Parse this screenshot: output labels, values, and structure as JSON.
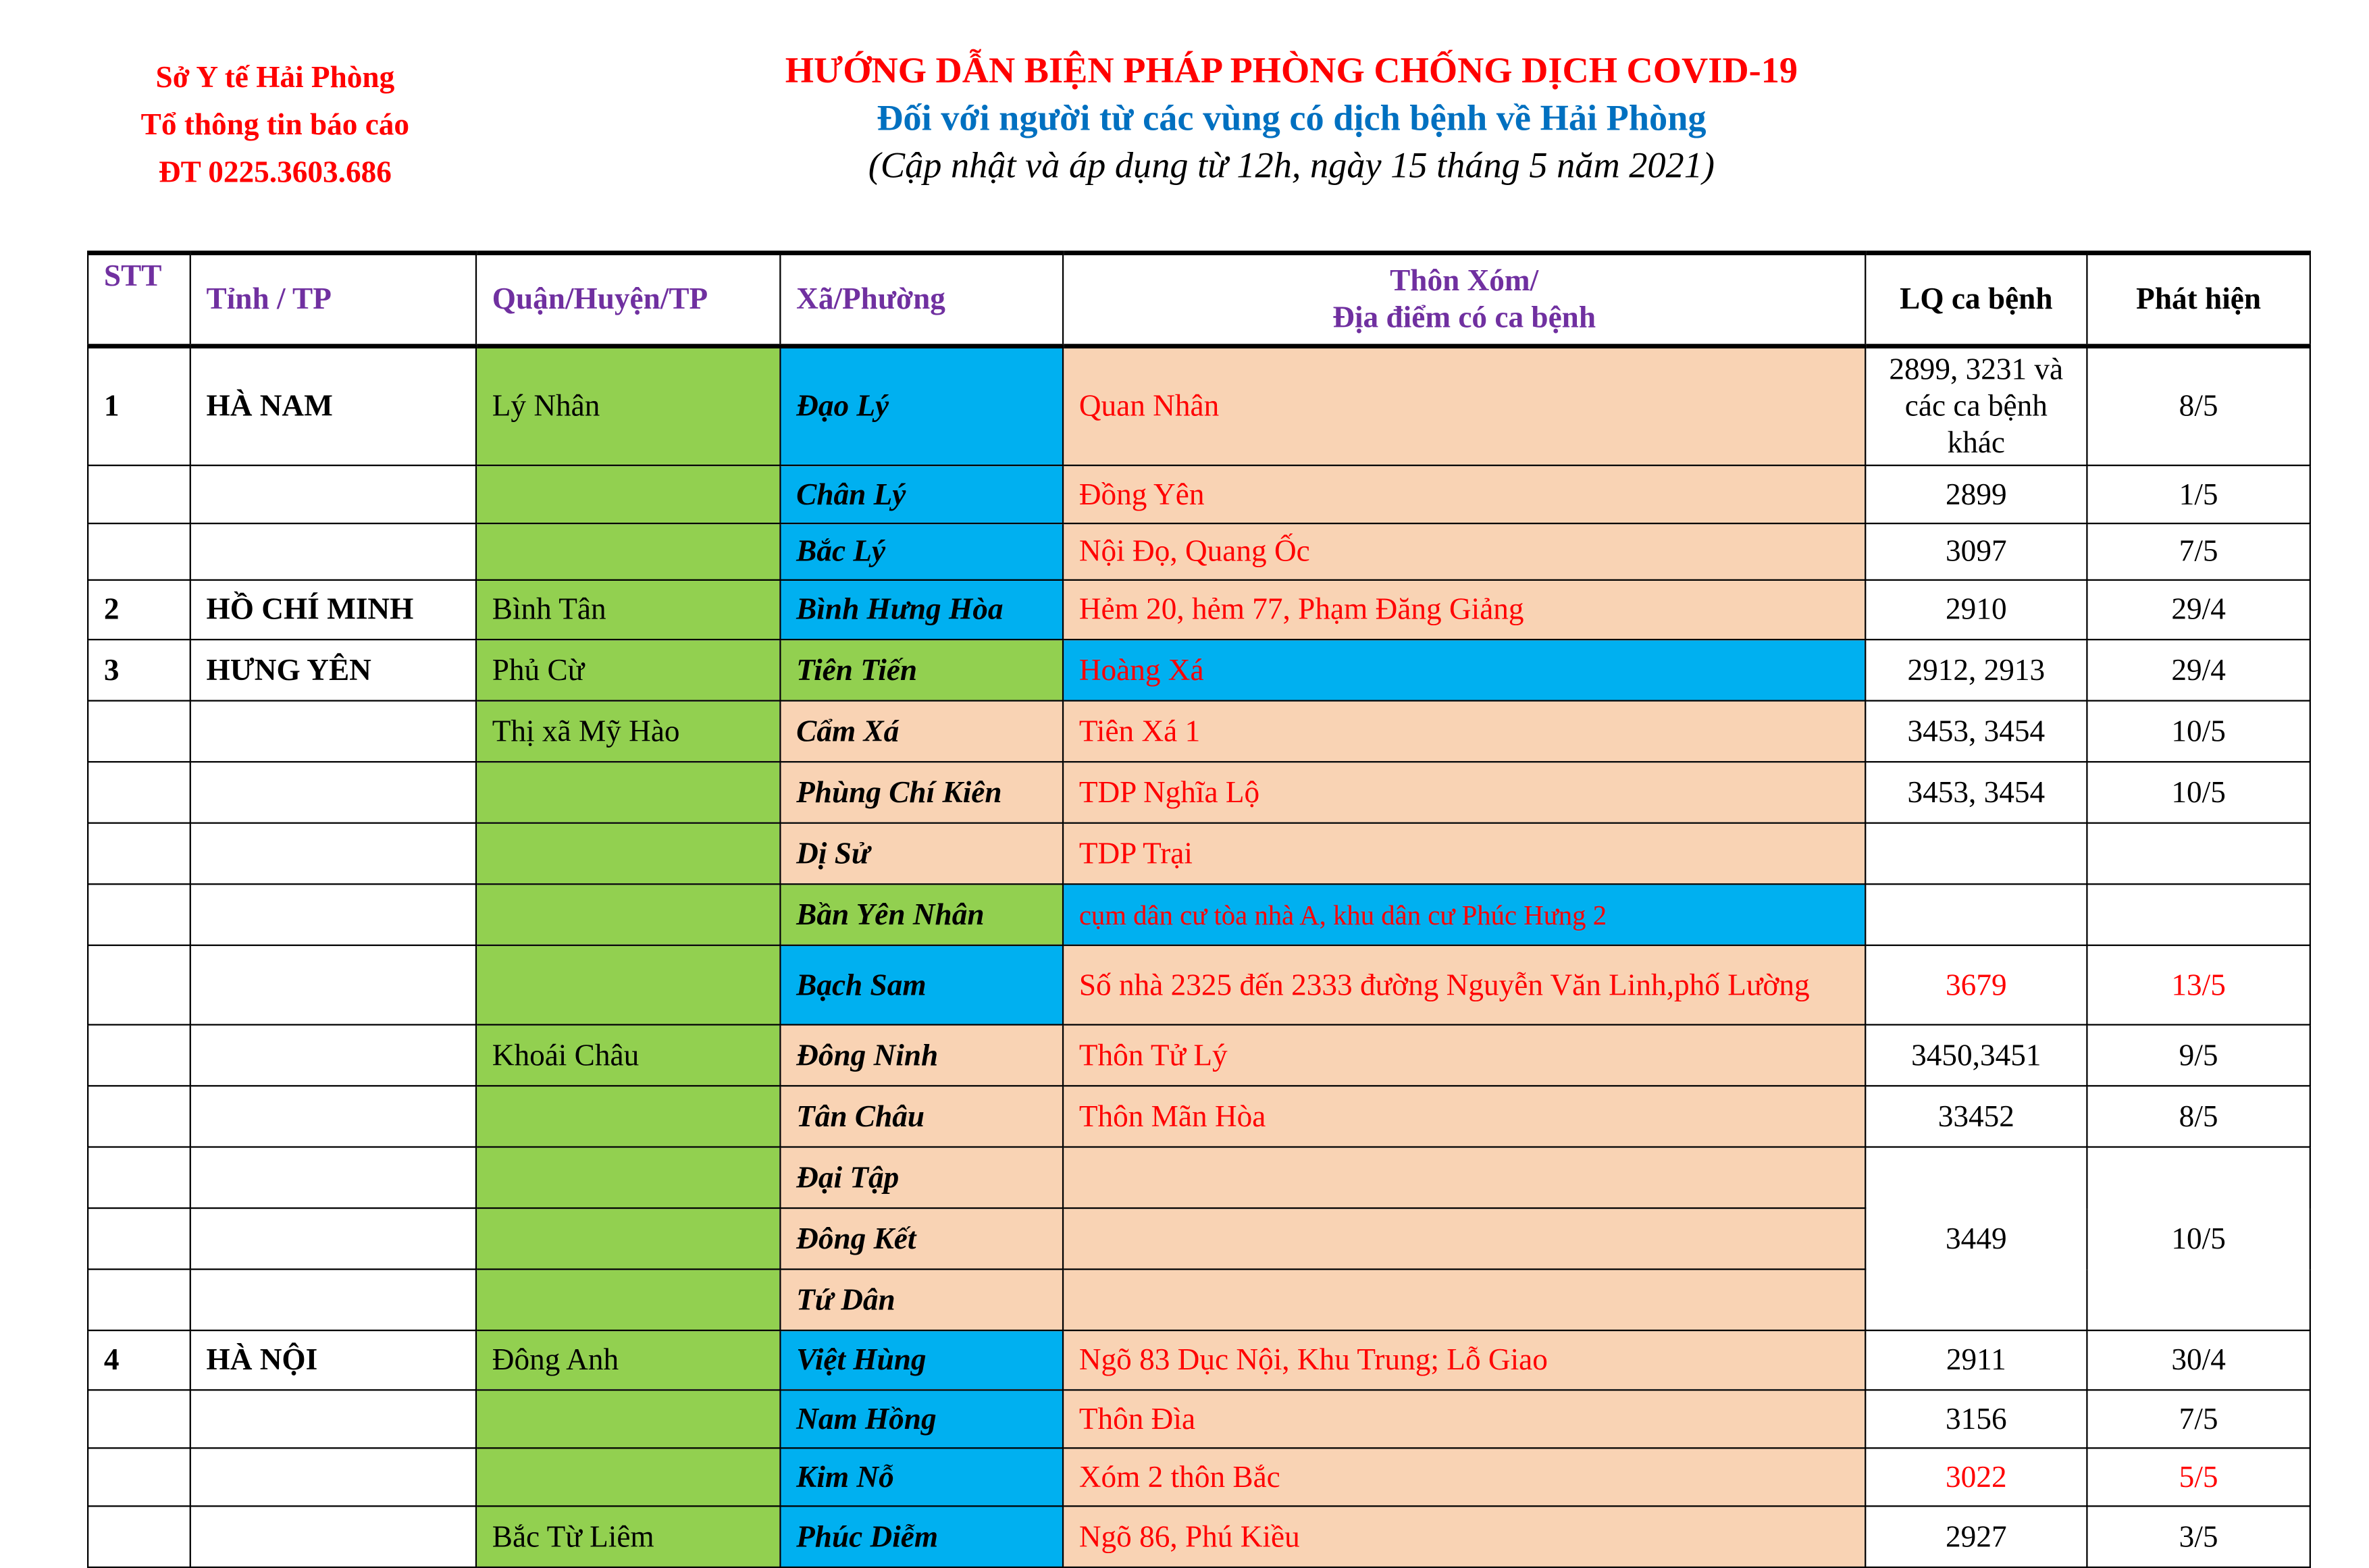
{
  "header_left": {
    "line1": "Sở Y tế Hải Phòng",
    "line2": "Tổ thông tin báo cáo",
    "line3": "ĐT 0225.3603.686"
  },
  "header_main": {
    "title": "HƯỚNG DẪN BIỆN PHÁP PHÒNG CHỐNG DỊCH COVID-19",
    "subtitle": "Đối với người từ các vùng có dịch bệnh về Hải Phòng",
    "note": "(Cập nhật và áp dụng từ 12h, ngày 15 tháng 5 năm 2021)"
  },
  "colors": {
    "green": "#92d050",
    "blue": "#00b0f0",
    "peach": "#f9d3b4",
    "red": "#ff0000",
    "purple": "#7030a0",
    "title_blue": "#0070c0"
  },
  "table": {
    "headers": {
      "stt": "STT",
      "province": "Tỉnh / TP",
      "district": "Quận/Huyện/TP",
      "ward": "Xã/Phường",
      "place_1": "Thôn Xóm/",
      "place_2": "Địa điểm có ca bệnh",
      "lq": "LQ ca bệnh",
      "date": "Phát hiện"
    },
    "rows": [
      {
        "stt": "1",
        "province": "HÀ NAM",
        "district": "Lý Nhân",
        "ward": "Đạo Lý",
        "place": "Quan Nhân",
        "lq": "2899, 3231 và các ca bệnh khác",
        "date": "8/5",
        "ward_bg": "blue",
        "place_bg": "peach"
      },
      {
        "stt": "",
        "province": "",
        "district": "",
        "ward": "Chân Lý",
        "place": "Đồng Yên",
        "lq": "2899",
        "date": "1/5",
        "ward_bg": "blue",
        "place_bg": "peach"
      },
      {
        "stt": "",
        "province": "",
        "district": "",
        "ward": "Bắc Lý",
        "place": "Nội Đọ, Quang Ốc",
        "lq": "3097",
        "date": "7/5",
        "ward_bg": "blue",
        "place_bg": "peach"
      },
      {
        "stt": "2",
        "province": "HỒ CHÍ MINH",
        "district": "Bình Tân",
        "ward": "Bình Hưng Hòa",
        "place": "Hẻm 20, hẻm 77, Phạm Đăng Giảng",
        "lq": "2910",
        "date": "29/4",
        "ward_bg": "blue",
        "place_bg": "peach"
      },
      {
        "stt": "3",
        "province": "HƯNG YÊN",
        "district": "Phủ Cừ",
        "ward": "Tiên Tiến",
        "place": "Hoàng Xá",
        "lq": "2912, 2913",
        "date": "29/4",
        "ward_bg": "green",
        "place_bg": "blue"
      },
      {
        "stt": "",
        "province": "",
        "district": "Thị xã Mỹ Hào",
        "ward": "Cẩm Xá",
        "place": "Tiên Xá 1",
        "lq": "3453, 3454",
        "date": "10/5",
        "ward_bg": "peach",
        "place_bg": "peach"
      },
      {
        "stt": "",
        "province": "",
        "district": "",
        "ward": "Phùng Chí Kiên",
        "place": "TDP Nghĩa Lộ",
        "lq": "3453, 3454",
        "date": "10/5",
        "ward_bg": "peach",
        "place_bg": "peach"
      },
      {
        "stt": "",
        "province": "",
        "district": "",
        "ward": "Dị Sử",
        "place": "TDP Trại",
        "lq": "",
        "date": "",
        "ward_bg": "peach",
        "place_bg": "peach"
      },
      {
        "stt": "",
        "province": "",
        "district": "",
        "ward": "Bần Yên Nhân",
        "place": "cụm dân cư tòa nhà A, khu dân cư Phúc Hưng 2",
        "lq": "",
        "date": "",
        "ward_bg": "green",
        "place_bg": "blue",
        "small": true
      },
      {
        "stt": "",
        "province": "",
        "district": "",
        "ward": "Bạch Sam",
        "place": "Số nhà 2325 đến 2333 đường Nguyễn Văn Linh,phố Lường",
        "lq": "3679",
        "date": "13/5",
        "ward_bg": "blue",
        "place_bg": "peach",
        "red": true
      },
      {
        "stt": "",
        "province": "",
        "district": "Khoái Châu",
        "ward": "Đông Ninh",
        "place": "Thôn Tử Lý",
        "lq": "3450,3451",
        "date": "9/5",
        "ward_bg": "peach",
        "place_bg": "peach"
      },
      {
        "stt": "",
        "province": "",
        "district": "",
        "ward": "Tân Châu",
        "place": "Thôn Mãn Hòa",
        "lq": "33452",
        "date": "8/5",
        "ward_bg": "peach",
        "place_bg": "peach"
      },
      {
        "stt": "",
        "province": "",
        "district": "",
        "ward": "Đại Tập",
        "place": "",
        "lq": "3449",
        "date": "10/5",
        "ward_bg": "peach",
        "place_bg": "peach",
        "span": 3
      },
      {
        "stt": "",
        "province": "",
        "district": "",
        "ward": "Đông Kết",
        "place": "",
        "ward_bg": "peach",
        "place_bg": "peach",
        "spanned": true
      },
      {
        "stt": "",
        "province": "",
        "district": "",
        "ward": "Tứ Dân",
        "place": "",
        "ward_bg": "peach",
        "place_bg": "peach",
        "spanned": true
      },
      {
        "stt": "4",
        "province": "HÀ NỘI",
        "district": "Đông Anh",
        "ward": "Việt Hùng",
        "place": "Ngõ 83 Dục Nội, Khu Trung; Lỗ Giao",
        "lq": "2911",
        "date": "30/4",
        "ward_bg": "blue",
        "place_bg": "peach"
      },
      {
        "stt": "",
        "province": "",
        "district": "",
        "ward": "Nam Hồng",
        "place": "Thôn Đìa",
        "lq": "3156",
        "date": "7/5",
        "ward_bg": "blue",
        "place_bg": "peach"
      },
      {
        "stt": "",
        "province": "",
        "district": "",
        "ward": "Kim Nỗ",
        "place": "Xóm 2 thôn Bắc",
        "lq": "3022",
        "date": "5/5",
        "ward_bg": "blue",
        "place_bg": "peach",
        "red": true
      },
      {
        "stt": "",
        "province": "",
        "district": "Bắc Từ Liêm",
        "ward": "Phúc Diễm",
        "place": "Ngõ 86, Phú Kiều",
        "lq": "2927",
        "date": "3/5",
        "ward_bg": "blue",
        "place_bg": "peach"
      }
    ]
  }
}
